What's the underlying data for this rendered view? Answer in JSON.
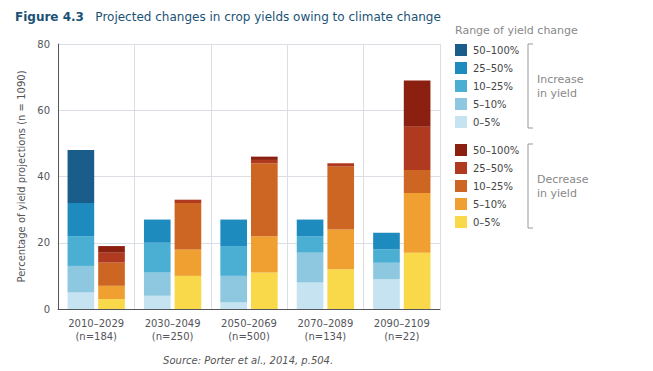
{
  "chart_data": {
    "type": "bar",
    "title": "Figure 4.3",
    "subtitle": "Projected changes in crop yields owing to climate change",
    "ylabel": "Percentage of yield projections (n = 1090)",
    "source": "Source: Porter et al., 2014, p.504.",
    "categories": [
      "2010–2029\n(n=184)",
      "2030–2049\n(n=250)",
      "2050–2069\n(n=500)",
      "2070–2089\n(n=134)",
      "2090–2109\n(n=22)"
    ],
    "stacked": true,
    "grid": true,
    "legend": "right",
    "legend_title": "Range of yield change",
    "ylim": [
      0,
      80
    ],
    "yticks": [
      0,
      20,
      40,
      60,
      80
    ],
    "groups": [
      {
        "name": "Increase\nin yield",
        "series": [
          {
            "name": "0–5%",
            "color": "#c5e3f0",
            "values": [
              5,
              4,
              2,
              8,
              9
            ]
          },
          {
            "name": "5–10%",
            "color": "#8dc8e0",
            "values": [
              8,
              7,
              8,
              9,
              5
            ]
          },
          {
            "name": "10–25%",
            "color": "#4bafd4",
            "values": [
              9,
              9,
              9,
              5,
              4
            ]
          },
          {
            "name": "25–50%",
            "color": "#1e8bbf",
            "values": [
              10,
              7,
              8,
              5,
              5
            ]
          },
          {
            "name": "50–100%",
            "color": "#1a5c8a",
            "values": [
              16,
              0,
              0,
              0,
              0
            ]
          }
        ]
      },
      {
        "name": "Decrease\nin yield",
        "series": [
          {
            "name": "0–5%",
            "color": "#f9d84a",
            "values": [
              3,
              10,
              11,
              12,
              17
            ]
          },
          {
            "name": "5–10%",
            "color": "#f0a030",
            "values": [
              4,
              8,
              11,
              12,
              18
            ]
          },
          {
            "name": "10–25%",
            "color": "#cc6622",
            "values": [
              7,
              14,
              22,
              19,
              7
            ]
          },
          {
            "name": "25–50%",
            "color": "#b03a20",
            "values": [
              3,
              1,
              1,
              1,
              13
            ]
          },
          {
            "name": "50–100%",
            "color": "#8b2010",
            "values": [
              2,
              0,
              1,
              0,
              14
            ]
          }
        ]
      }
    ]
  }
}
